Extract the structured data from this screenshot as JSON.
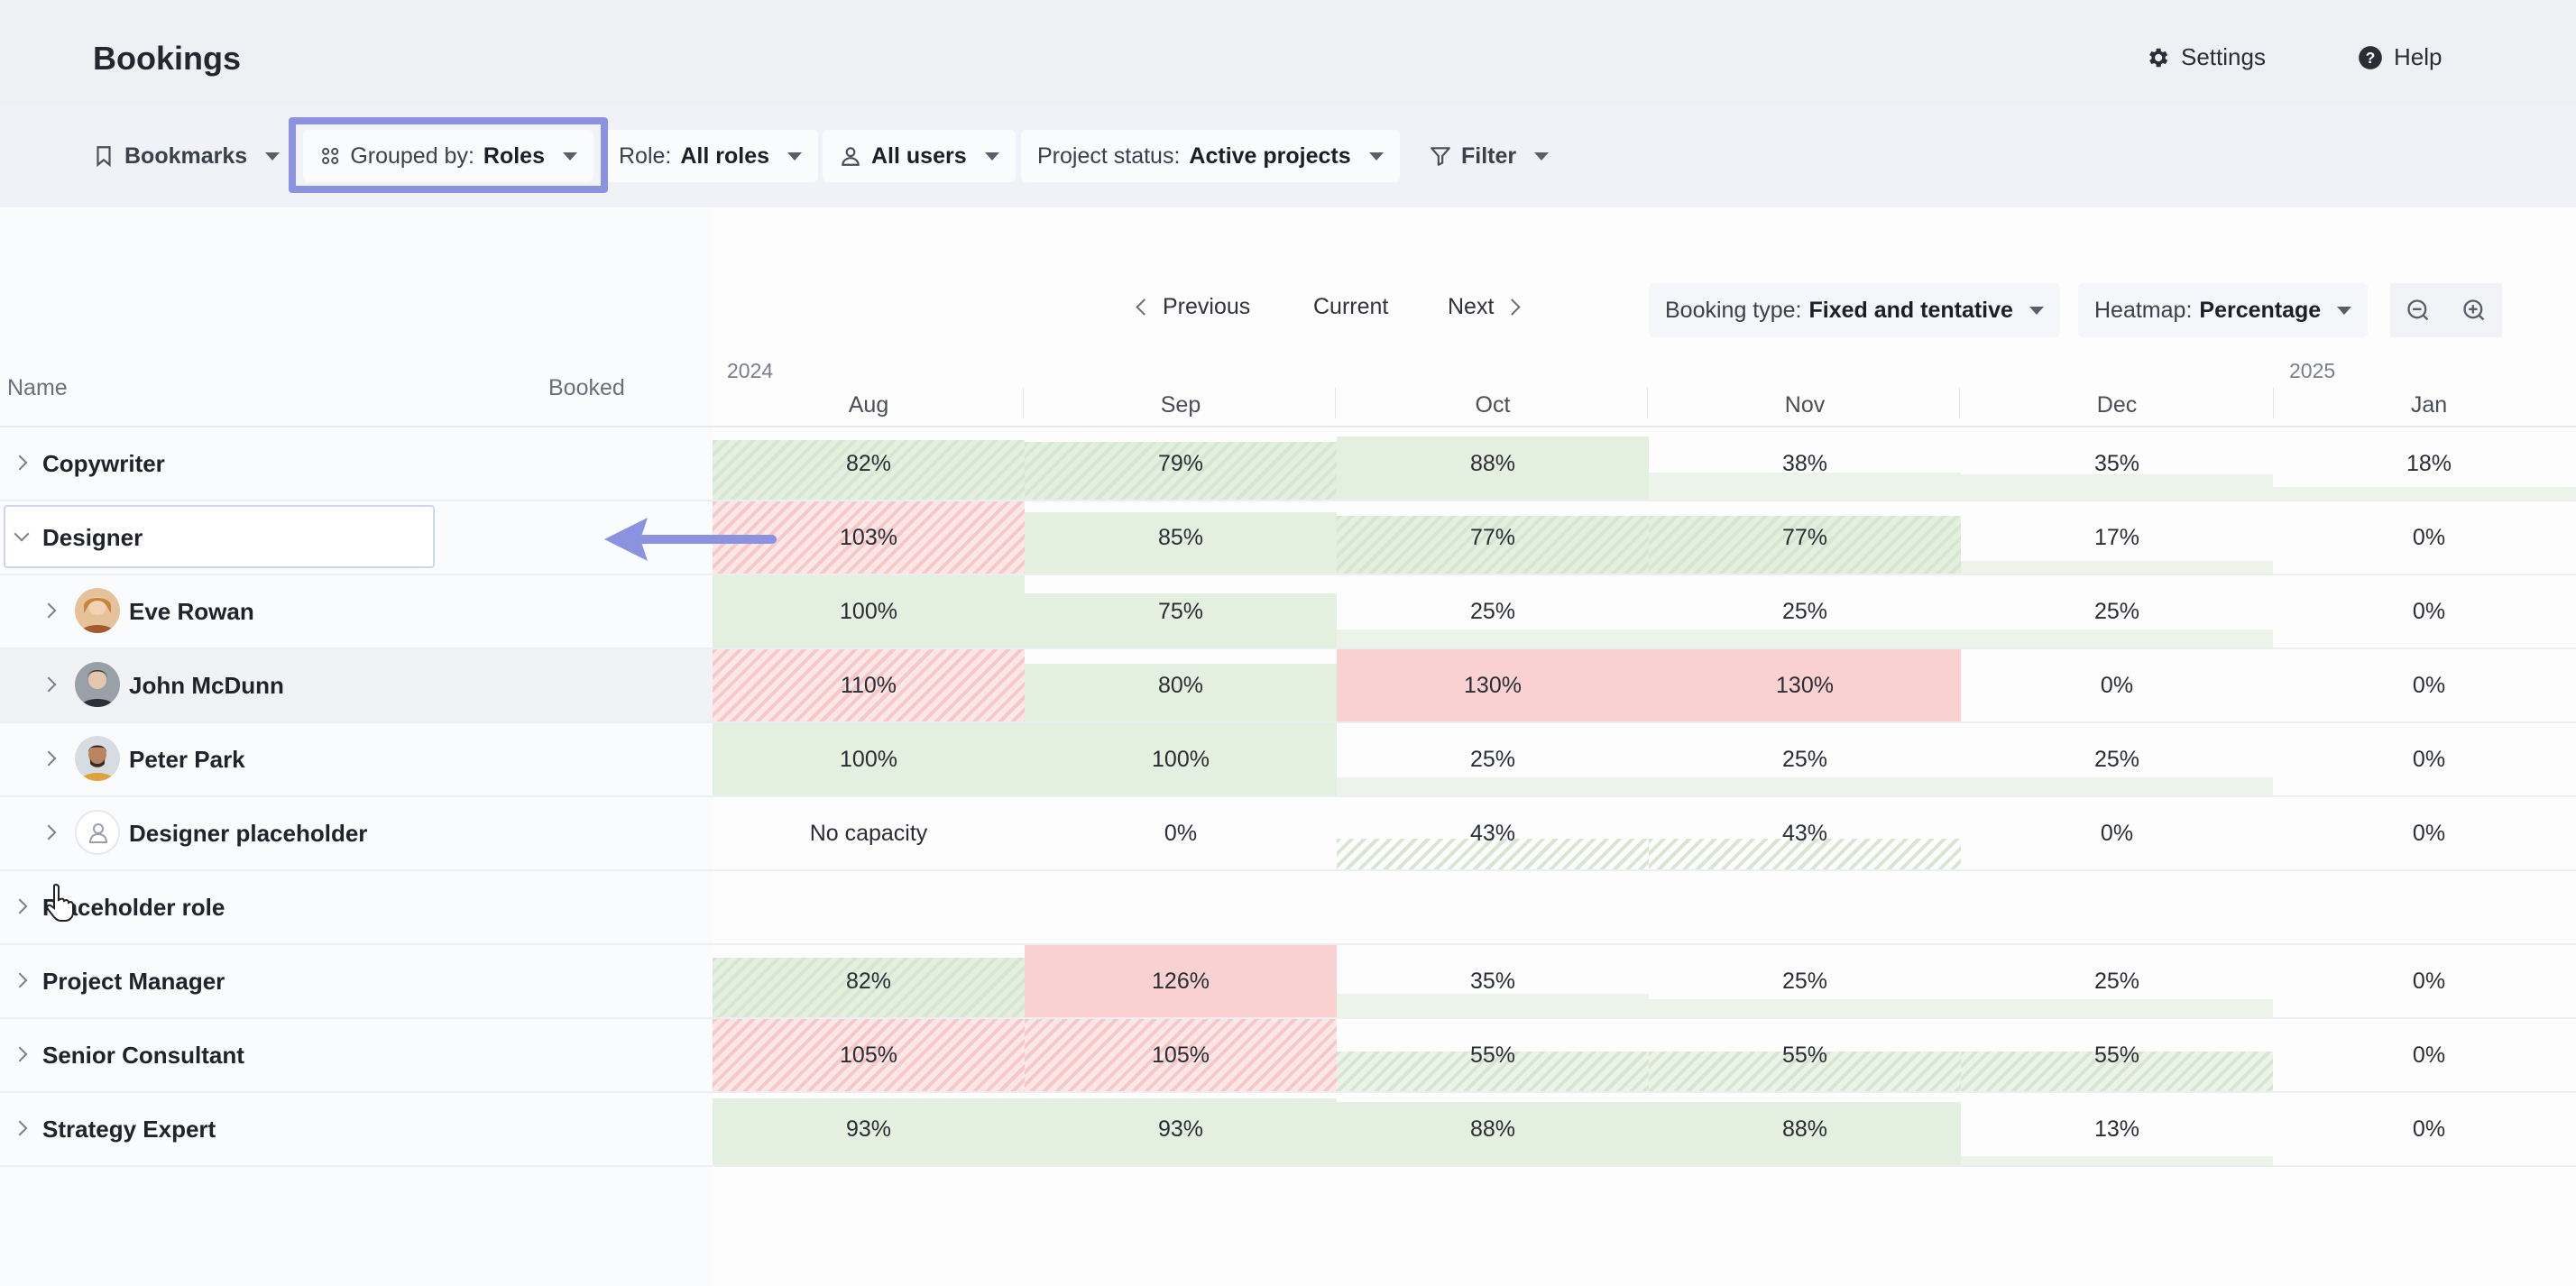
{
  "header": {
    "title": "Bookings",
    "settings_label": "Settings",
    "help_label": "Help"
  },
  "filters": {
    "bookmarks": "Bookmarks",
    "grouped_prefix": "Grouped by:",
    "grouped_value": "Roles",
    "role_prefix": "Role:",
    "role_value": "All roles",
    "users_value": "All users",
    "status_prefix": "Project status:",
    "status_value": "Active projects",
    "filter_label": "Filter"
  },
  "toolbar": {
    "previous": "Previous",
    "current": "Current",
    "next": "Next",
    "booking_type_prefix": "Booking type:",
    "booking_type_value": "Fixed and tentative",
    "heatmap_prefix": "Heatmap:",
    "heatmap_value": "Percentage"
  },
  "table": {
    "col_name": "Name",
    "col_booked": "Booked",
    "years": [
      "2024",
      "2025"
    ],
    "months": [
      "Aug",
      "Sep",
      "Oct",
      "Nov",
      "Dec",
      "Jan"
    ],
    "rows": [
      {
        "name": "Copywriter",
        "level": 0,
        "expanded": false,
        "values": [
          "82%",
          "79%",
          "88%",
          "38%",
          "35%",
          "18%"
        ]
      },
      {
        "name": "Designer",
        "level": 0,
        "expanded": true,
        "values": [
          "103%",
          "85%",
          "77%",
          "77%",
          "17%",
          "0%"
        ]
      },
      {
        "name": "Eve Rowan",
        "level": 1,
        "avatar": "person-avatar-icon",
        "values": [
          "100%",
          "75%",
          "25%",
          "25%",
          "25%",
          "0%"
        ]
      },
      {
        "name": "John McDunn",
        "level": 1,
        "avatar": "person-avatar-icon",
        "values": [
          "110%",
          "80%",
          "130%",
          "130%",
          "0%",
          "0%"
        ]
      },
      {
        "name": "Peter Park",
        "level": 1,
        "avatar": "person-avatar-icon",
        "values": [
          "100%",
          "100%",
          "25%",
          "25%",
          "25%",
          "0%"
        ]
      },
      {
        "name": "Designer placeholder",
        "level": 1,
        "avatar": "placeholder-user-icon",
        "values": [
          "No capacity",
          "0%",
          "43%",
          "43%",
          "0%",
          "0%"
        ]
      },
      {
        "name": "Placeholder role",
        "level": 0,
        "expanded": false,
        "values": [
          "",
          "",
          "",
          "",
          "",
          ""
        ]
      },
      {
        "name": "Project Manager",
        "level": 0,
        "expanded": false,
        "values": [
          "82%",
          "126%",
          "35%",
          "25%",
          "25%",
          "0%"
        ]
      },
      {
        "name": "Senior Consultant",
        "level": 0,
        "expanded": false,
        "values": [
          "105%",
          "105%",
          "55%",
          "55%",
          "55%",
          "0%"
        ]
      },
      {
        "name": "Strategy Expert",
        "level": 0,
        "expanded": false,
        "values": [
          "93%",
          "93%",
          "88%",
          "88%",
          "13%",
          "0%"
        ]
      }
    ]
  },
  "colors": {
    "over_capacity": "#fad1d1",
    "booked": "#e3efdf",
    "highlight": "#8b92df"
  }
}
